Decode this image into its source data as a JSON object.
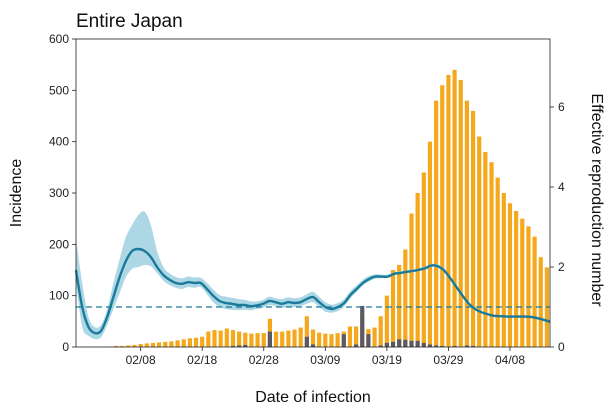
{
  "chart_data": {
    "type": "bar",
    "title": "Entire Japan",
    "xlabel": "Date of infection",
    "ylabel": "Incidence",
    "y2label": "Effective reproduction number",
    "ylim": [
      0,
      600
    ],
    "y2lim": [
      0,
      7.7
    ],
    "yticks": [
      0,
      100,
      200,
      300,
      400,
      500,
      600
    ],
    "y2ticks": [
      0,
      2,
      4,
      6
    ],
    "x_start": "01/29",
    "x_end": "04/13",
    "xticks": [
      {
        "day": 10,
        "label": "02/08"
      },
      {
        "day": 20,
        "label": "02/18"
      },
      {
        "day": 30,
        "label": "02/28"
      },
      {
        "day": 40,
        "label": "03/09"
      },
      {
        "day": 50,
        "label": "03/19"
      },
      {
        "day": 60,
        "label": "03/29"
      },
      {
        "day": 70,
        "label": "04/08"
      }
    ],
    "colors": {
      "domestic": "#f5a81c",
      "imported": "#5a5a64",
      "rt_line": "#1a7a9a",
      "rt_band": "#9fd0e0",
      "threshold": "#1a7a9a",
      "axis": "#222222"
    },
    "threshold": 1,
    "series": [
      {
        "key": "domestic",
        "values": [
          0,
          0,
          0,
          0,
          0,
          1,
          2,
          2,
          3,
          4,
          6,
          7,
          8,
          9,
          10,
          11,
          13,
          15,
          17,
          18,
          20,
          30,
          33,
          32,
          36,
          33,
          30,
          28,
          26,
          27,
          27,
          55,
          30,
          30,
          32,
          34,
          38,
          60,
          34,
          28,
          26,
          25,
          27,
          30,
          40,
          40,
          60,
          35,
          38,
          60,
          100,
          150,
          160,
          190,
          260,
          300,
          340,
          400,
          480,
          510,
          530,
          540,
          520,
          480,
          460,
          410,
          380,
          360,
          330,
          300,
          280,
          265,
          250,
          235,
          215,
          175,
          155
        ]
      },
      {
        "key": "imported",
        "values": [
          0,
          0,
          0,
          0,
          0,
          0,
          0,
          0,
          0,
          0,
          0,
          0,
          0,
          0,
          0,
          0,
          0,
          0,
          0,
          0,
          0,
          0,
          0,
          0,
          0,
          2,
          3,
          4,
          0,
          0,
          0,
          30,
          0,
          0,
          0,
          0,
          0,
          20,
          5,
          0,
          0,
          0,
          0,
          25,
          0,
          5,
          80,
          25,
          0,
          3,
          8,
          10,
          15,
          14,
          12,
          12,
          8,
          5,
          3,
          2,
          0,
          2,
          0,
          3,
          2,
          0,
          0,
          0,
          0,
          0,
          0,
          0,
          0,
          0,
          0,
          0,
          0
        ]
      },
      {
        "key": "rt",
        "x": [
          0,
          1,
          2,
          3,
          4,
          5,
          6,
          7,
          8,
          9,
          10,
          11,
          12,
          13,
          14,
          15,
          16,
          17,
          18,
          19,
          20,
          21,
          22,
          23,
          24,
          25,
          26,
          27,
          28,
          29,
          30,
          31,
          32,
          33,
          34,
          35,
          36,
          37,
          38,
          39,
          40,
          41,
          42,
          43,
          44,
          45,
          46,
          47,
          48,
          49,
          50,
          51,
          52,
          53,
          54,
          55,
          56,
          57,
          58,
          59,
          60,
          61,
          62,
          63,
          64,
          65,
          66,
          67,
          68,
          69,
          70,
          71,
          72,
          73,
          74,
          75,
          76
        ],
        "values": [
          1.92,
          1.0,
          0.5,
          0.35,
          0.4,
          0.75,
          1.25,
          1.75,
          2.15,
          2.4,
          2.45,
          2.4,
          2.25,
          2.0,
          1.8,
          1.68,
          1.6,
          1.58,
          1.62,
          1.6,
          1.6,
          1.45,
          1.28,
          1.15,
          1.1,
          1.08,
          1.05,
          1.05,
          1.02,
          1.04,
          1.08,
          1.15,
          1.12,
          1.08,
          1.12,
          1.1,
          1.12,
          1.2,
          1.25,
          1.12,
          1.0,
          0.95,
          1.0,
          1.1,
          1.3,
          1.45,
          1.6,
          1.7,
          1.76,
          1.76,
          1.76,
          1.83,
          1.85,
          1.88,
          1.9,
          1.93,
          1.97,
          2.04,
          2.02,
          1.92,
          1.72,
          1.5,
          1.28,
          1.08,
          0.95,
          0.87,
          0.82,
          0.78,
          0.77,
          0.76,
          0.76,
          0.76,
          0.76,
          0.75,
          0.72,
          0.68,
          0.63
        ],
        "lower": [
          1.6,
          0.5,
          0.28,
          0.2,
          0.24,
          0.55,
          0.95,
          1.35,
          1.75,
          1.95,
          2.0,
          2.05,
          2.02,
          1.85,
          1.66,
          1.55,
          1.48,
          1.45,
          1.5,
          1.48,
          1.5,
          1.32,
          1.12,
          1.0,
          0.95,
          0.93,
          0.92,
          0.93,
          0.92,
          0.95,
          0.98,
          1.05,
          1.02,
          0.98,
          1.0,
          1.0,
          1.02,
          1.08,
          1.12,
          1.0,
          0.88,
          0.86,
          0.9,
          1.02,
          1.22,
          1.38,
          1.54,
          1.64,
          1.71,
          1.72,
          1.73,
          1.8,
          1.83,
          1.85,
          1.87,
          1.9,
          1.93,
          2.0,
          1.98,
          1.88,
          1.68,
          1.47,
          1.25,
          1.06,
          0.93,
          0.86,
          0.81,
          0.77,
          0.76,
          0.75,
          0.75,
          0.75,
          0.75,
          0.74,
          0.71,
          0.67,
          0.62
        ],
        "upper": [
          2.7,
          1.6,
          0.75,
          0.5,
          0.55,
          0.95,
          1.6,
          2.2,
          2.75,
          3.05,
          3.3,
          3.38,
          3.05,
          2.4,
          2.0,
          1.84,
          1.75,
          1.72,
          1.76,
          1.74,
          1.73,
          1.6,
          1.44,
          1.3,
          1.26,
          1.23,
          1.2,
          1.18,
          1.14,
          1.14,
          1.18,
          1.26,
          1.22,
          1.2,
          1.24,
          1.22,
          1.24,
          1.32,
          1.38,
          1.25,
          1.12,
          1.06,
          1.1,
          1.2,
          1.4,
          1.54,
          1.68,
          1.78,
          1.82,
          1.81,
          1.81,
          1.87,
          1.89,
          1.92,
          1.93,
          1.97,
          2.01,
          2.08,
          2.06,
          1.96,
          1.76,
          1.53,
          1.31,
          1.11,
          0.98,
          0.89,
          0.84,
          0.8,
          0.79,
          0.78,
          0.78,
          0.78,
          0.78,
          0.77,
          0.74,
          0.7,
          0.65
        ]
      }
    ]
  }
}
